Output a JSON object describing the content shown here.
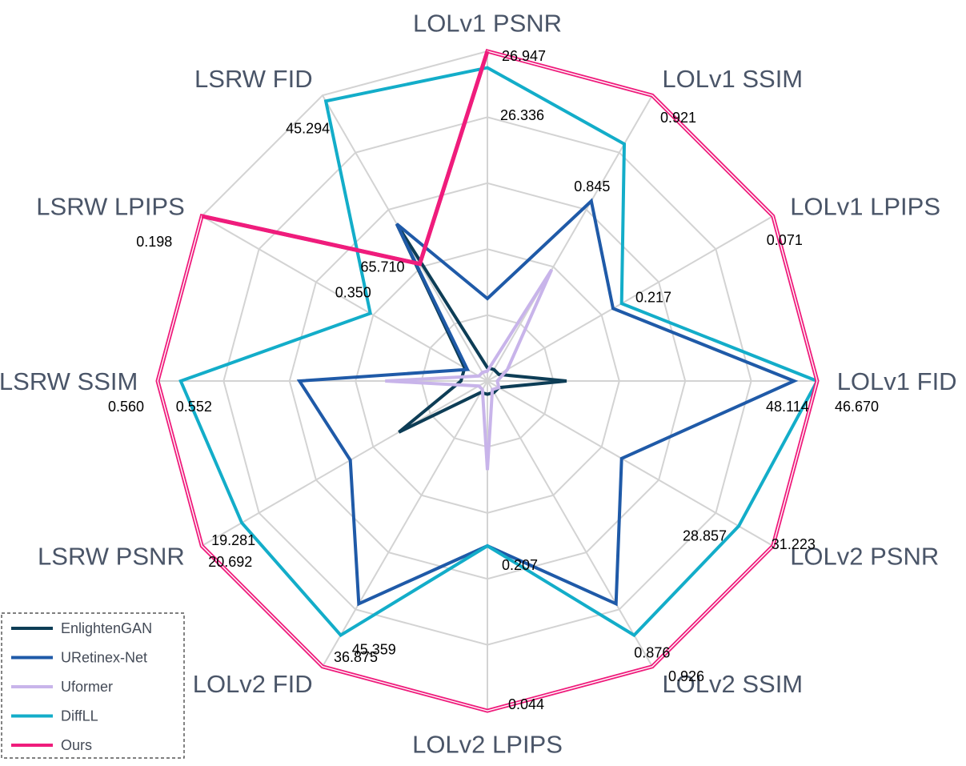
{
  "chart_data": {
    "type": "radar",
    "axes": [
      "LOLv1 PSNR",
      "LOLv1 SSIM",
      "LOLv1 LPIPS",
      "LOLv1 FID",
      "LOLv2 PSNR",
      "LOLv2 SSIM",
      "LOLv2 LPIPS",
      "LOLv2 FID",
      "LSRW PSNR",
      "LSRW SSIM",
      "LSRW LPIPS",
      "LSRW FID"
    ],
    "grid": true,
    "legend_position": "bottom-left",
    "series": [
      {
        "name": "EnlightenGAN",
        "color": "#0d3d56",
        "style": "solid",
        "radii": [
          0.04,
          0.04,
          0.04,
          0.24,
          0.04,
          0.04,
          0.04,
          0.04,
          0.31,
          0.08,
          0.08,
          0.55
        ]
      },
      {
        "name": "URetinex-Net",
        "color": "#1f5aa8",
        "style": "solid",
        "radii": [
          0.25,
          0.63,
          0.44,
          0.93,
          0.47,
          0.78,
          0.5,
          0.78,
          0.48,
          0.57,
          0.07,
          0.55
        ]
      },
      {
        "name": "Uformer",
        "color": "#c8b4ea",
        "style": "solid",
        "radii": [
          0.03,
          0.39,
          0.07,
          0.03,
          0.04,
          0.03,
          0.27,
          0.03,
          0.03,
          0.31,
          0.03,
          0.03
        ]
      },
      {
        "name": "DiffLL",
        "color": "#13adc9",
        "style": "solid",
        "radii": [
          0.95,
          0.83,
          0.47,
          1.0,
          0.88,
          0.89,
          0.5,
          0.89,
          0.86,
          0.93,
          0.41,
          0.98
        ]
      },
      {
        "name": "Ours",
        "color": "#ef1c7c",
        "style": "solid",
        "radii": [
          1.0,
          1.0,
          1.0,
          1.0,
          1.0,
          1.0,
          1.0,
          1.0,
          1.0,
          1.0,
          1.0,
          0.41
        ]
      }
    ],
    "value_labels": [
      {
        "axis": 0,
        "t": 1.0,
        "text": "26.947"
      },
      {
        "axis": 0,
        "t": 0.84,
        "text": "26.336"
      },
      {
        "axis": 1,
        "t": 1.0,
        "text": "0.921"
      },
      {
        "axis": 1,
        "t": 0.72,
        "text": "0.845"
      },
      {
        "axis": 2,
        "t": 1.0,
        "text": "0.071"
      },
      {
        "axis": 2,
        "t": 0.44,
        "text": "0.217"
      },
      {
        "axis": 3,
        "t": 1.0,
        "text": "46.670"
      },
      {
        "axis": 3,
        "t": 1.0,
        "text": "48.114"
      },
      {
        "axis": 4,
        "t": 1.0,
        "text": "31.223"
      },
      {
        "axis": 4,
        "t": 0.88,
        "text": "28.857"
      },
      {
        "axis": 5,
        "t": 1.0,
        "text": "0.926"
      },
      {
        "axis": 5,
        "t": 0.89,
        "text": "0.876"
      },
      {
        "axis": 6,
        "t": 1.0,
        "text": "0.044"
      },
      {
        "axis": 6,
        "t": 0.5,
        "text": "0.207"
      },
      {
        "axis": 7,
        "t": 1.0,
        "text": "36.875"
      },
      {
        "axis": 7,
        "t": 0.89,
        "text": "45.359"
      },
      {
        "axis": 8,
        "t": 1.0,
        "text": "20.692"
      },
      {
        "axis": 8,
        "t": 0.86,
        "text": "19.281"
      },
      {
        "axis": 9,
        "t": 1.0,
        "text": "0.560"
      },
      {
        "axis": 9,
        "t": 0.93,
        "text": "0.552"
      },
      {
        "axis": 10,
        "t": 1.0,
        "text": "0.198"
      },
      {
        "axis": 10,
        "t": 0.41,
        "text": "0.350"
      },
      {
        "axis": 11,
        "t": 0.98,
        "text": "45.294"
      },
      {
        "axis": 11,
        "t": 0.41,
        "text": "65.710"
      }
    ]
  }
}
